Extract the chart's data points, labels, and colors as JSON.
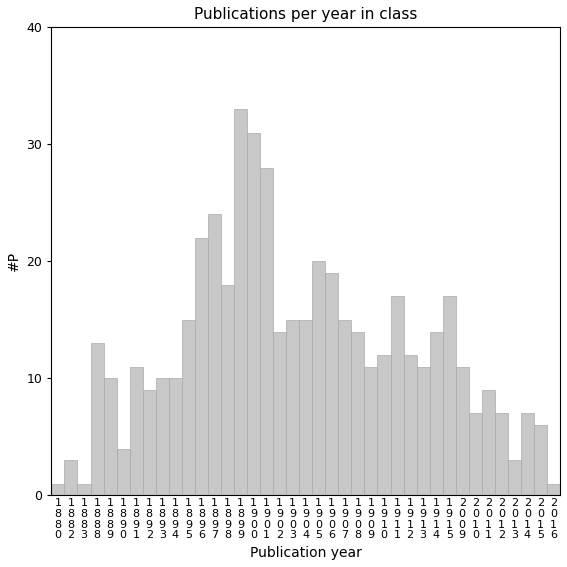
{
  "title": "Publications per year in class",
  "xlabel": "Publication year",
  "ylabel": "#P",
  "bar_color": "#c8c8c8",
  "edge_color": "#aaaaaa",
  "ylim": [
    0,
    40
  ],
  "yticks": [
    0,
    10,
    20,
    30,
    40
  ],
  "year_values": [
    [
      "1880",
      1
    ],
    [
      "1882",
      3
    ],
    [
      "1883",
      1
    ],
    [
      "1888",
      13
    ],
    [
      "1889",
      10
    ],
    [
      "1890",
      4
    ],
    [
      "1891",
      11
    ],
    [
      "1892",
      9
    ],
    [
      "1893",
      10
    ],
    [
      "1894",
      10
    ],
    [
      "1895",
      15
    ],
    [
      "1896",
      22
    ],
    [
      "1897",
      24
    ],
    [
      "1898",
      18
    ],
    [
      "1899",
      33
    ],
    [
      "1900",
      31
    ],
    [
      "1901",
      28
    ],
    [
      "1902",
      14
    ],
    [
      "1903",
      15
    ],
    [
      "1904",
      15
    ],
    [
      "1905",
      20
    ],
    [
      "1906",
      19
    ],
    [
      "1907",
      15
    ],
    [
      "1908",
      14
    ],
    [
      "1909",
      11
    ],
    [
      "1910",
      12
    ],
    [
      "1911",
      17
    ],
    [
      "1912",
      12
    ],
    [
      "1913",
      11
    ],
    [
      "1914",
      14
    ],
    [
      "1915",
      17
    ],
    [
      "2009",
      11
    ],
    [
      "2010",
      7
    ],
    [
      "2011",
      9
    ],
    [
      "2012",
      7
    ],
    [
      "2013",
      3
    ],
    [
      "2014",
      7
    ],
    [
      "2015",
      6
    ],
    [
      "2016",
      1
    ]
  ],
  "title_fontsize": 11,
  "label_fontsize": 10,
  "tick_fontsize": 8
}
